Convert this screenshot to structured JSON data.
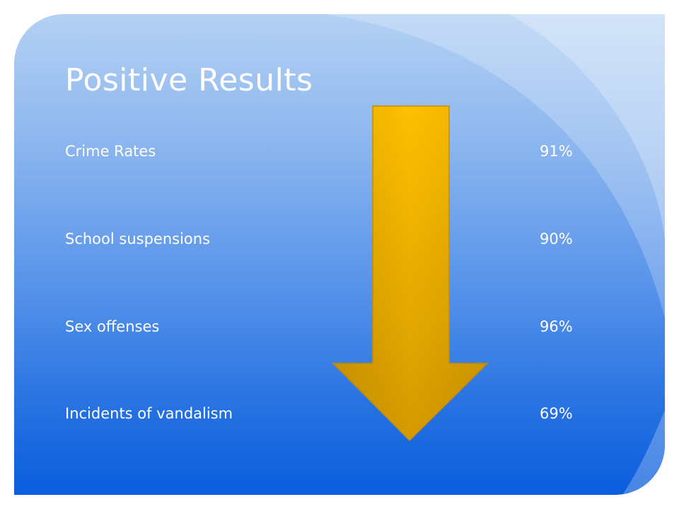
{
  "title": "Positive Results",
  "rows": [
    {
      "label": "Crime Rates",
      "value": "91%"
    },
    {
      "label": "School suspensions",
      "value": "90%"
    },
    {
      "label": "Sex offenses",
      "value": "96%"
    },
    {
      "label": "Incidents of vandalism",
      "value": "69%"
    }
  ],
  "colors": {
    "background_top": "#b4d1f3",
    "background_bottom": "#0a5ddd",
    "arrow_light": "#ffc000",
    "arrow_dark": "#d49a00",
    "text": "#ffffff"
  },
  "icons": {
    "arrow": "down-arrow-icon"
  }
}
